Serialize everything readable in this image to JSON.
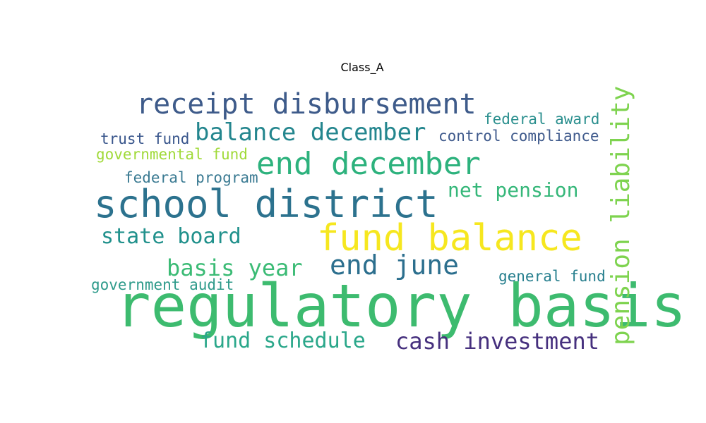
{
  "title": "Class_A",
  "chart_data": {
    "type": "wordcloud",
    "title": "Class_A",
    "words": [
      {
        "text": "regulatory basis",
        "weight": 1.0,
        "color": "#3dbb6f"
      },
      {
        "text": "school district",
        "weight": 0.85,
        "color": "#2c728e"
      },
      {
        "text": "fund balance",
        "weight": 0.82,
        "color": "#f6e71f"
      },
      {
        "text": "end december",
        "weight": 0.7,
        "color": "#2db27d"
      },
      {
        "text": "receipt disbursement",
        "weight": 0.63,
        "color": "#3e5b8a"
      },
      {
        "text": "end june",
        "weight": 0.6,
        "color": "#2c6f8e"
      },
      {
        "text": "pension liability",
        "weight": 0.58,
        "color": "#7ed34f"
      },
      {
        "text": "balance december",
        "weight": 0.5,
        "color": "#24868e"
      },
      {
        "text": "basis year",
        "weight": 0.5,
        "color": "#3bbb75"
      },
      {
        "text": "cash investment",
        "weight": 0.5,
        "color": "#46307e"
      },
      {
        "text": "fund schedule",
        "weight": 0.47,
        "color": "#2aa78a"
      },
      {
        "text": "state board",
        "weight": 0.47,
        "color": "#21918c"
      },
      {
        "text": "net pension",
        "weight": 0.44,
        "color": "#35b779"
      },
      {
        "text": "federal award",
        "weight": 0.33,
        "color": "#2a8f8e"
      },
      {
        "text": "trust fund",
        "weight": 0.32,
        "color": "#39568c"
      },
      {
        "text": "control compliance",
        "weight": 0.32,
        "color": "#3f5a8c"
      },
      {
        "text": "governmental fund",
        "weight": 0.32,
        "color": "#a0da39"
      },
      {
        "text": "federal program",
        "weight": 0.32,
        "color": "#3a7a92"
      },
      {
        "text": "general fund",
        "weight": 0.31,
        "color": "#277f8e"
      },
      {
        "text": "government audit",
        "weight": 0.31,
        "color": "#2d9a8a"
      }
    ]
  }
}
